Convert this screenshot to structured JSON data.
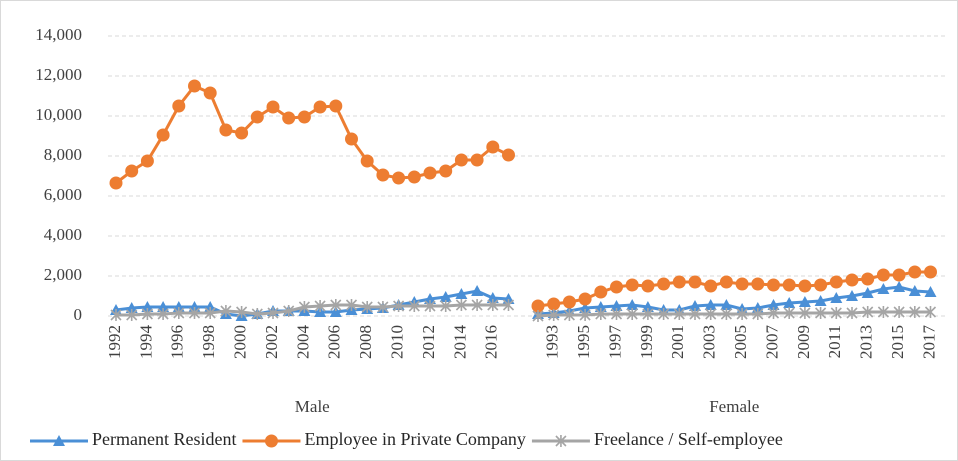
{
  "chart_data": {
    "type": "line",
    "ylim": [
      0,
      14000
    ],
    "yticks": [
      {
        "value": 0,
        "label": "0"
      },
      {
        "value": 2000,
        "label": "2,000"
      },
      {
        "value": 4000,
        "label": "4,000"
      },
      {
        "value": 6000,
        "label": "6,000"
      },
      {
        "value": 8000,
        "label": "8,000"
      },
      {
        "value": 10000,
        "label": "10,000"
      },
      {
        "value": 12000,
        "label": "12,000"
      },
      {
        "value": 14000,
        "label": "14,000"
      }
    ],
    "grid": true,
    "legend": "bottom",
    "groups": [
      {
        "label": "Male",
        "categories": [
          "1992",
          null,
          "1994",
          null,
          "1996",
          null,
          "1998",
          null,
          "2000",
          null,
          "2002",
          null,
          "2004",
          null,
          "2006",
          null,
          "2008",
          null,
          "2010",
          null,
          "2012",
          null,
          "2014",
          null,
          "2016",
          null
        ]
      },
      {
        "label": "Female",
        "categories": [
          null,
          "1993",
          null,
          "1995",
          null,
          "1997",
          null,
          "1999",
          null,
          "2001",
          null,
          "2003",
          null,
          "2005",
          null,
          "2007",
          null,
          "2009",
          null,
          "2011",
          null,
          "2013",
          null,
          "2015",
          null,
          "2017"
        ]
      }
    ],
    "series": [
      {
        "name": "Permanent Resident",
        "color": "#4a8fd6",
        "marker": "triangle",
        "values": [
          [
            300,
            400,
            450,
            450,
            450,
            450,
            450,
            100,
            0,
            100,
            250,
            250,
            250,
            200,
            200,
            300,
            350,
            400,
            550,
            700,
            850,
            950,
            1100,
            1250,
            900,
            850
          ],
          [
            100,
            150,
            250,
            400,
            450,
            500,
            550,
            450,
            300,
            300,
            500,
            550,
            550,
            350,
            400,
            550,
            650,
            700,
            750,
            900,
            1000,
            1150,
            1350,
            1450,
            1250,
            1200
          ]
        ]
      },
      {
        "name": "Employee in Private Company",
        "color": "#ed7d31",
        "marker": "circle",
        "values": [
          [
            6650,
            7250,
            7750,
            9050,
            10500,
            11500,
            11150,
            9300,
            9150,
            9950,
            10450,
            9900,
            9950,
            10450,
            10500,
            8850,
            7750,
            7050,
            6900,
            6950,
            7150,
            7250,
            7800,
            7800,
            8450,
            8050
          ],
          [
            500,
            600,
            700,
            850,
            1200,
            1450,
            1550,
            1500,
            1600,
            1700,
            1700,
            1500,
            1700,
            1600,
            1600,
            1550,
            1550,
            1500,
            1550,
            1700,
            1800,
            1850,
            2050,
            2050,
            2200,
            2200
          ]
        ]
      },
      {
        "name": "Freelance / Self-employee",
        "color": "#a5a5a5",
        "marker": "star",
        "values": [
          [
            50,
            50,
            100,
            100,
            150,
            150,
            150,
            250,
            200,
            100,
            150,
            250,
            450,
            500,
            550,
            550,
            450,
            450,
            500,
            500,
            500,
            500,
            550,
            550,
            550,
            550
          ],
          [
            0,
            50,
            50,
            50,
            100,
            100,
            100,
            100,
            100,
            100,
            100,
            100,
            100,
            100,
            100,
            150,
            150,
            150,
            150,
            150,
            150,
            200,
            200,
            200,
            200,
            200
          ]
        ]
      }
    ]
  }
}
